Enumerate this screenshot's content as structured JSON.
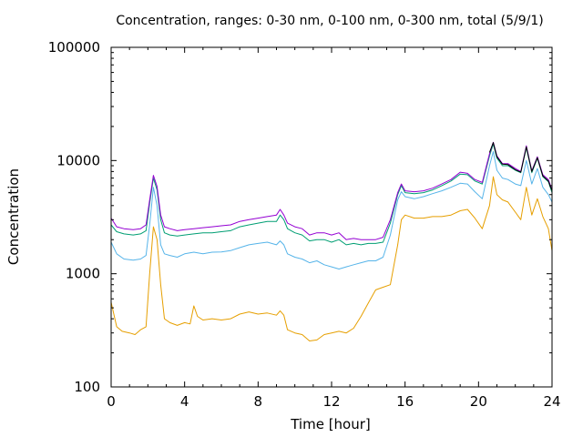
{
  "chart_data": {
    "type": "line",
    "title": "Concentration, ranges: 0-30 nm, 0-100 nm, 0-300 nm, total (5/9/1)",
    "xlabel": "Time [hour]",
    "ylabel": "Concentration",
    "xlim": [
      0,
      24
    ],
    "ylim": [
      100,
      100000
    ],
    "yscale": "log",
    "xticks": [
      "0",
      "4",
      "8",
      "12",
      "16",
      "20",
      "24"
    ],
    "yticks": [
      "100",
      "1000",
      "10000",
      "100000"
    ],
    "grid": false,
    "legend": "none",
    "series": [
      {
        "color": "#e69f00",
        "points": [
          [
            0,
            560
          ],
          [
            0.3,
            340
          ],
          [
            0.6,
            310
          ],
          [
            1.0,
            300
          ],
          [
            1.3,
            290
          ],
          [
            1.6,
            320
          ],
          [
            1.9,
            340
          ],
          [
            2.1,
            1000
          ],
          [
            2.3,
            2600
          ],
          [
            2.5,
            2000
          ],
          [
            2.7,
            800
          ],
          [
            2.9,
            400
          ],
          [
            3.2,
            370
          ],
          [
            3.6,
            350
          ],
          [
            4.0,
            370
          ],
          [
            4.3,
            360
          ],
          [
            4.5,
            520
          ],
          [
            4.7,
            420
          ],
          [
            5.0,
            390
          ],
          [
            5.5,
            400
          ],
          [
            6.0,
            390
          ],
          [
            6.5,
            400
          ],
          [
            7.0,
            440
          ],
          [
            7.5,
            460
          ],
          [
            8.0,
            440
          ],
          [
            8.5,
            450
          ],
          [
            9.0,
            430
          ],
          [
            9.2,
            470
          ],
          [
            9.4,
            430
          ],
          [
            9.6,
            320
          ],
          [
            10.0,
            300
          ],
          [
            10.4,
            290
          ],
          [
            10.8,
            255
          ],
          [
            11.2,
            260
          ],
          [
            11.6,
            290
          ],
          [
            12.0,
            300
          ],
          [
            12.4,
            310
          ],
          [
            12.8,
            300
          ],
          [
            13.2,
            330
          ],
          [
            13.6,
            420
          ],
          [
            14.0,
            550
          ],
          [
            14.4,
            720
          ],
          [
            14.8,
            760
          ],
          [
            15.2,
            800
          ],
          [
            15.6,
            1800
          ],
          [
            15.8,
            3000
          ],
          [
            16.0,
            3300
          ],
          [
            16.5,
            3100
          ],
          [
            17.0,
            3100
          ],
          [
            17.5,
            3200
          ],
          [
            18.0,
            3200
          ],
          [
            18.5,
            3300
          ],
          [
            19.0,
            3600
          ],
          [
            19.4,
            3700
          ],
          [
            19.8,
            3100
          ],
          [
            20.2,
            2500
          ],
          [
            20.6,
            4000
          ],
          [
            20.8,
            7200
          ],
          [
            21.0,
            5000
          ],
          [
            21.3,
            4500
          ],
          [
            21.6,
            4300
          ],
          [
            22.0,
            3500
          ],
          [
            22.3,
            3000
          ],
          [
            22.6,
            5800
          ],
          [
            22.9,
            3300
          ],
          [
            23.2,
            4600
          ],
          [
            23.5,
            3200
          ],
          [
            23.8,
            2500
          ],
          [
            24.0,
            1600
          ]
        ]
      },
      {
        "color": "#56b4e9",
        "points": [
          [
            0,
            1900
          ],
          [
            0.3,
            1500
          ],
          [
            0.7,
            1350
          ],
          [
            1.2,
            1320
          ],
          [
            1.6,
            1350
          ],
          [
            1.9,
            1450
          ],
          [
            2.1,
            2700
          ],
          [
            2.3,
            5800
          ],
          [
            2.5,
            4000
          ],
          [
            2.7,
            1800
          ],
          [
            2.9,
            1500
          ],
          [
            3.2,
            1450
          ],
          [
            3.6,
            1400
          ],
          [
            4.0,
            1500
          ],
          [
            4.5,
            1550
          ],
          [
            5.0,
            1500
          ],
          [
            5.5,
            1550
          ],
          [
            6.0,
            1560
          ],
          [
            6.5,
            1600
          ],
          [
            7.0,
            1700
          ],
          [
            7.5,
            1800
          ],
          [
            8.0,
            1850
          ],
          [
            8.5,
            1900
          ],
          [
            9.0,
            1800
          ],
          [
            9.2,
            1950
          ],
          [
            9.4,
            1800
          ],
          [
            9.6,
            1500
          ],
          [
            10.0,
            1400
          ],
          [
            10.4,
            1350
          ],
          [
            10.8,
            1250
          ],
          [
            11.2,
            1300
          ],
          [
            11.6,
            1200
          ],
          [
            12.0,
            1150
          ],
          [
            12.4,
            1100
          ],
          [
            12.8,
            1150
          ],
          [
            13.2,
            1200
          ],
          [
            13.6,
            1250
          ],
          [
            14.0,
            1300
          ],
          [
            14.4,
            1300
          ],
          [
            14.8,
            1400
          ],
          [
            15.2,
            2200
          ],
          [
            15.6,
            4500
          ],
          [
            15.8,
            5300
          ],
          [
            16.0,
            4800
          ],
          [
            16.5,
            4600
          ],
          [
            17.0,
            4800
          ],
          [
            17.5,
            5100
          ],
          [
            18.0,
            5400
          ],
          [
            18.5,
            5800
          ],
          [
            19.0,
            6300
          ],
          [
            19.4,
            6200
          ],
          [
            19.8,
            5300
          ],
          [
            20.2,
            4600
          ],
          [
            20.6,
            9000
          ],
          [
            20.8,
            12000
          ],
          [
            21.0,
            8200
          ],
          [
            21.3,
            7000
          ],
          [
            21.6,
            6800
          ],
          [
            22.0,
            6200
          ],
          [
            22.3,
            6000
          ],
          [
            22.6,
            10000
          ],
          [
            22.9,
            6200
          ],
          [
            23.2,
            8500
          ],
          [
            23.5,
            5800
          ],
          [
            23.8,
            5000
          ],
          [
            24.0,
            4300
          ]
        ]
      },
      {
        "color": "#009e73",
        "points": [
          [
            0,
            2700
          ],
          [
            0.3,
            2350
          ],
          [
            0.7,
            2250
          ],
          [
            1.2,
            2200
          ],
          [
            1.6,
            2250
          ],
          [
            1.9,
            2400
          ],
          [
            2.1,
            4200
          ],
          [
            2.3,
            7000
          ],
          [
            2.5,
            5500
          ],
          [
            2.7,
            3000
          ],
          [
            2.9,
            2300
          ],
          [
            3.2,
            2200
          ],
          [
            3.6,
            2150
          ],
          [
            4.0,
            2200
          ],
          [
            4.5,
            2250
          ],
          [
            5.0,
            2300
          ],
          [
            5.5,
            2300
          ],
          [
            6.0,
            2350
          ],
          [
            6.5,
            2400
          ],
          [
            7.0,
            2600
          ],
          [
            7.5,
            2700
          ],
          [
            8.0,
            2800
          ],
          [
            8.5,
            2900
          ],
          [
            9.0,
            2900
          ],
          [
            9.2,
            3300
          ],
          [
            9.4,
            3000
          ],
          [
            9.6,
            2500
          ],
          [
            10.0,
            2300
          ],
          [
            10.4,
            2200
          ],
          [
            10.8,
            1950
          ],
          [
            11.2,
            2000
          ],
          [
            11.6,
            2000
          ],
          [
            12.0,
            1900
          ],
          [
            12.4,
            2000
          ],
          [
            12.8,
            1800
          ],
          [
            13.2,
            1850
          ],
          [
            13.6,
            1800
          ],
          [
            14.0,
            1850
          ],
          [
            14.4,
            1850
          ],
          [
            14.8,
            1900
          ],
          [
            15.2,
            2800
          ],
          [
            15.6,
            5000
          ],
          [
            15.8,
            6000
          ],
          [
            16.0,
            5200
          ],
          [
            16.5,
            5100
          ],
          [
            17.0,
            5200
          ],
          [
            17.5,
            5500
          ],
          [
            18.0,
            6000
          ],
          [
            18.5,
            6600
          ],
          [
            19.0,
            7600
          ],
          [
            19.4,
            7500
          ],
          [
            19.8,
            6600
          ],
          [
            20.2,
            6200
          ],
          [
            20.6,
            11000
          ],
          [
            20.8,
            14000
          ],
          [
            21.0,
            10500
          ],
          [
            21.3,
            9000
          ],
          [
            21.6,
            9000
          ],
          [
            22.0,
            8200
          ],
          [
            22.3,
            7800
          ],
          [
            22.6,
            13000
          ],
          [
            22.9,
            7800
          ],
          [
            23.2,
            10500
          ],
          [
            23.5,
            7200
          ],
          [
            23.8,
            6500
          ],
          [
            24.0,
            5200
          ]
        ]
      },
      {
        "color": "#9400d3",
        "points": [
          [
            0,
            3100
          ],
          [
            0.3,
            2600
          ],
          [
            0.7,
            2500
          ],
          [
            1.2,
            2450
          ],
          [
            1.6,
            2500
          ],
          [
            1.9,
            2700
          ],
          [
            2.1,
            4500
          ],
          [
            2.3,
            7400
          ],
          [
            2.5,
            5900
          ],
          [
            2.7,
            3300
          ],
          [
            2.9,
            2600
          ],
          [
            3.2,
            2500
          ],
          [
            3.6,
            2400
          ],
          [
            4.0,
            2450
          ],
          [
            4.5,
            2500
          ],
          [
            5.0,
            2550
          ],
          [
            5.5,
            2600
          ],
          [
            6.0,
            2650
          ],
          [
            6.5,
            2700
          ],
          [
            7.0,
            2900
          ],
          [
            7.5,
            3000
          ],
          [
            8.0,
            3100
          ],
          [
            8.5,
            3200
          ],
          [
            9.0,
            3300
          ],
          [
            9.2,
            3700
          ],
          [
            9.4,
            3300
          ],
          [
            9.6,
            2800
          ],
          [
            10.0,
            2600
          ],
          [
            10.4,
            2500
          ],
          [
            10.8,
            2200
          ],
          [
            11.2,
            2300
          ],
          [
            11.6,
            2300
          ],
          [
            12.0,
            2200
          ],
          [
            12.4,
            2300
          ],
          [
            12.8,
            2000
          ],
          [
            13.2,
            2050
          ],
          [
            13.6,
            2000
          ],
          [
            14.0,
            2000
          ],
          [
            14.4,
            2000
          ],
          [
            14.8,
            2100
          ],
          [
            15.2,
            3000
          ],
          [
            15.6,
            5200
          ],
          [
            15.8,
            6200
          ],
          [
            16.0,
            5400
          ],
          [
            16.5,
            5300
          ],
          [
            17.0,
            5400
          ],
          [
            17.5,
            5700
          ],
          [
            18.0,
            6200
          ],
          [
            18.5,
            6800
          ],
          [
            19.0,
            7900
          ],
          [
            19.4,
            7700
          ],
          [
            19.8,
            6800
          ],
          [
            20.2,
            6400
          ],
          [
            20.6,
            11500
          ],
          [
            20.8,
            14500
          ],
          [
            21.0,
            11000
          ],
          [
            21.3,
            9400
          ],
          [
            21.6,
            9400
          ],
          [
            22.0,
            8500
          ],
          [
            22.3,
            8000
          ],
          [
            22.6,
            13500
          ],
          [
            22.9,
            8100
          ],
          [
            23.2,
            10800
          ],
          [
            23.5,
            7500
          ],
          [
            23.8,
            6800
          ],
          [
            24.0,
            5500
          ]
        ]
      },
      {
        "color": "#000000",
        "points": [
          [
            20.6,
            11800
          ],
          [
            20.8,
            14400
          ],
          [
            21.0,
            10800
          ],
          [
            21.3,
            9300
          ],
          [
            21.6,
            9200
          ],
          [
            22.0,
            8300
          ],
          [
            22.3,
            7900
          ],
          [
            22.6,
            13200
          ],
          [
            22.9,
            8000
          ],
          [
            23.2,
            10600
          ],
          [
            23.5,
            7300
          ],
          [
            23.8,
            6600
          ],
          [
            24.0,
            5400
          ]
        ]
      }
    ]
  }
}
